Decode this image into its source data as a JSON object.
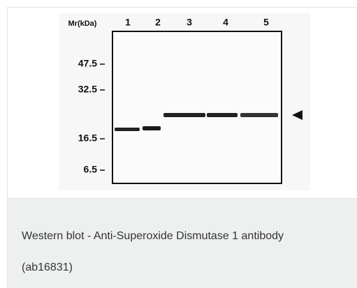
{
  "figure": {
    "mw_label": "Mr(kDa)",
    "lanes": [
      "1",
      "2",
      "3",
      "4",
      "5"
    ],
    "markers": [
      "47.5",
      "32.5",
      "16.5",
      "6.5"
    ]
  },
  "caption": "Western blot - Anti-Superoxide Dismutase 1 antibody (ab16831)"
}
